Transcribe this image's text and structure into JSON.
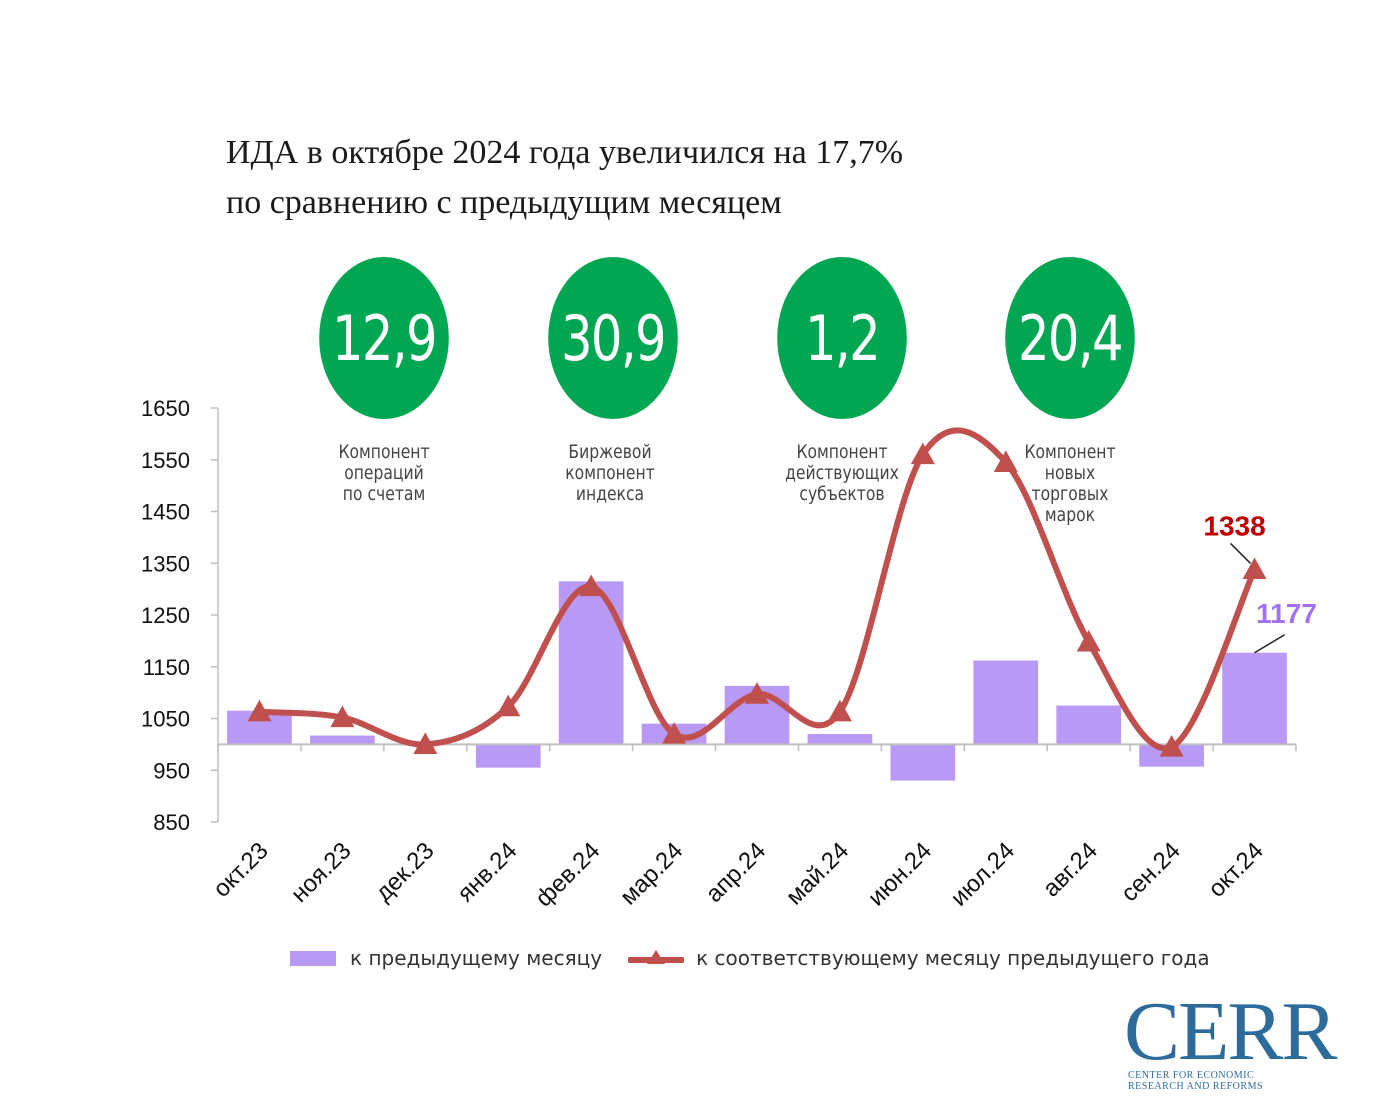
{
  "title": {
    "line1": "ИДА в октябре 2024 года увеличился на 17,7%",
    "line2": "по сравнению с предыдущим месяцем"
  },
  "kpis": [
    {
      "value": "12,9",
      "label": "Компонент\nопераций\nпо счетам"
    },
    {
      "value": "30,9",
      "label": "Биржевой\nкомпонент\nиндекса"
    },
    {
      "value": "1,2",
      "label": "Компонент\nдействующих\nсубъектов"
    },
    {
      "value": "20,4",
      "label": "Компонент\nновых\nторговых\nмарок"
    }
  ],
  "colors": {
    "kpi_green": "#00a651",
    "bar": "#b899f5",
    "line": "#c0504d",
    "line_label": "#c00000",
    "bar_label": "#a173f2",
    "logo": "#2d6c9a"
  },
  "chart_data": {
    "type": "bar",
    "categories": [
      "окт.23",
      "ноя.23",
      "дек.23",
      "янв.24",
      "фев.24",
      "мар.24",
      "апр.24",
      "май.24",
      "июн.24",
      "июл.24",
      "авг.24",
      "сен.24",
      "окт.24"
    ],
    "baseline": 1000,
    "ylim": [
      850,
      1650
    ],
    "yticks": [
      "1650",
      "1550",
      "1450",
      "1350",
      "1250",
      "1150",
      "1050",
      "950",
      "850"
    ],
    "series": [
      {
        "name": "к предыдущему месяцу",
        "type": "bar",
        "values": [
          1065,
          1017,
          1000,
          955,
          1315,
          1040,
          1113,
          1020,
          930,
          1162,
          1075,
          957,
          1177
        ]
      },
      {
        "name": "к соответствующему месяцу предыдущего года",
        "type": "line",
        "values": [
          1063,
          1052,
          1000,
          1073,
          1305,
          1020,
          1097,
          1063,
          1560,
          1545,
          1198,
          995,
          1338
        ]
      }
    ],
    "annotations": [
      {
        "series": 1,
        "index": 12,
        "text": "1338"
      },
      {
        "series": 0,
        "index": 12,
        "text": "1177"
      }
    ]
  },
  "logo": {
    "text": "CERR",
    "line1": "CENTER FOR ECONOMIC",
    "line2": "RESEARCH AND REFORMS"
  }
}
